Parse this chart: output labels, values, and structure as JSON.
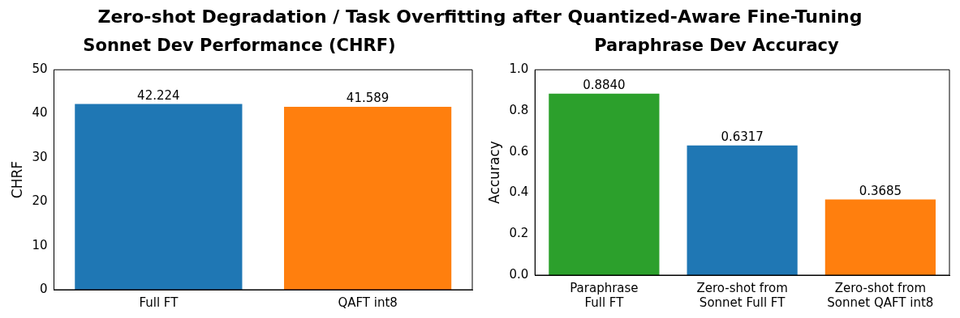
{
  "chart_data": [
    {
      "type": "other",
      "title": "Zero-shot Degradation / Task Overfitting after Quantized-Aware Fine-Tuning"
    },
    {
      "type": "bar",
      "title": "Sonnet Dev Performance (CHRF)",
      "ylabel": "CHRF",
      "categories": [
        "Full FT",
        "QAFT int8"
      ],
      "values": [
        42.224,
        41.589
      ],
      "colors": [
        "#1f77b4",
        "#ff7f0e"
      ],
      "value_labels": [
        "42.224",
        "41.589"
      ],
      "ylim": [
        0,
        50
      ],
      "yticks": [
        0,
        10,
        20,
        30,
        40,
        50
      ],
      "grid": false,
      "legend": false
    },
    {
      "type": "bar",
      "title": "Paraphrase Dev Accuracy",
      "ylabel": "Accuracy",
      "categories": [
        "Paraphrase\nFull FT",
        "Zero-shot from\nSonnet Full FT",
        "Zero-shot from\nSonnet QAFT int8"
      ],
      "values": [
        0.884,
        0.6317,
        0.3685
      ],
      "colors": [
        "#2ca02c",
        "#1f77b4",
        "#ff7f0e"
      ],
      "value_labels": [
        "0.8840",
        "0.6317",
        "0.3685"
      ],
      "ylim": [
        0,
        1
      ],
      "yticks": [
        {
          "value": 0,
          "label": "0.0"
        },
        {
          "value": 0.2,
          "label": "0.2"
        },
        {
          "value": 0.4,
          "label": "0.4"
        },
        {
          "value": 0.6,
          "label": "0.6"
        },
        {
          "value": 0.8,
          "label": "0.8"
        },
        {
          "value": 1,
          "label": "1.0"
        }
      ],
      "grid": false,
      "legend": false
    }
  ]
}
